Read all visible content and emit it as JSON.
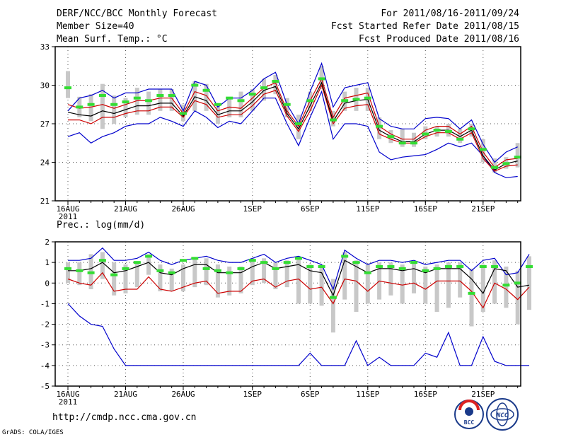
{
  "header": {
    "title": "DERF/NCC/BCC Monthly Forecast",
    "member_size": "Member Size=40",
    "variable": "Mean Surf. Temp.: °C",
    "forecast_period": "For 2011/08/16-2011/09/24",
    "started_refer": "Fcst Started Refer Date 2011/08/15",
    "produced": "Fcst Produced Date 2011/08/16"
  },
  "footer": {
    "url": "http://cmdp.ncc.cma.gov.cn",
    "credit": "GrADS: COLA/IGES",
    "logo_bcc_text": "BCC",
    "logo_ncc_text": "NCC"
  },
  "chart_data": [
    {
      "type": "line",
      "title": "Mean Surf. Temp.: °C",
      "x_tick_labels": [
        "16AUG",
        "21AUG",
        "26AUG",
        "1SEP",
        "6SEP",
        "11SEP",
        "16SEP",
        "21SEP"
      ],
      "x_tick_sublabel": "2011",
      "ylim": [
        21,
        33
      ],
      "y_ticks": [
        21,
        24,
        27,
        30,
        33
      ],
      "grid": true,
      "series": [
        {
          "name": "max",
          "color": "#0000cc",
          "values": [
            28.0,
            29.0,
            29.2,
            29.6,
            29.0,
            29.4,
            29.4,
            29.7,
            29.7,
            29.7,
            28.0,
            30.3,
            30.0,
            28.3,
            29.0,
            29.0,
            29.6,
            30.5,
            31.0,
            28.5,
            27.0,
            29.5,
            31.7,
            28.3,
            29.8,
            30.0,
            30.2,
            27.4,
            26.8,
            26.6,
            26.6,
            27.4,
            27.5,
            27.4,
            26.6,
            27.3,
            25.4,
            24.0,
            24.8,
            25.2
          ]
        },
        {
          "name": "min",
          "color": "#0000cc",
          "values": [
            26.0,
            26.3,
            25.5,
            26.0,
            26.3,
            26.8,
            27.0,
            27.0,
            27.5,
            27.2,
            26.8,
            28.0,
            27.5,
            26.7,
            27.2,
            27.0,
            28.0,
            29.0,
            29.0,
            27.0,
            25.3,
            27.5,
            29.5,
            25.8,
            27.0,
            27.0,
            26.8,
            24.8,
            24.2,
            24.4,
            24.5,
            24.6,
            25.0,
            25.5,
            25.2,
            25.5,
            24.5,
            23.2,
            22.8,
            22.9
          ]
        },
        {
          "name": "upper",
          "color": "#cc0000",
          "values": [
            28.5,
            28.2,
            28.3,
            28.5,
            28.2,
            28.5,
            28.8,
            28.8,
            29.0,
            29.0,
            27.8,
            29.5,
            29.2,
            28.0,
            28.3,
            28.2,
            29.0,
            29.8,
            30.2,
            28.0,
            26.8,
            28.8,
            30.5,
            27.5,
            29.0,
            29.2,
            29.4,
            26.8,
            26.2,
            25.8,
            25.8,
            26.5,
            26.8,
            26.8,
            26.2,
            26.8,
            24.8,
            23.6,
            24.2,
            24.3
          ]
        },
        {
          "name": "lower",
          "color": "#cc0000",
          "values": [
            27.3,
            27.3,
            27.0,
            27.5,
            27.5,
            27.8,
            28.0,
            28.0,
            28.3,
            28.3,
            27.5,
            28.8,
            28.5,
            27.5,
            27.7,
            27.7,
            28.4,
            29.3,
            29.6,
            27.6,
            26.4,
            28.0,
            30.0,
            27.0,
            28.2,
            28.4,
            28.5,
            26.2,
            25.8,
            25.5,
            25.5,
            26.0,
            26.3,
            26.3,
            25.8,
            26.3,
            24.3,
            23.3,
            23.7,
            23.8
          ]
        },
        {
          "name": "mean",
          "color": "#000000",
          "values": [
            27.9,
            27.7,
            27.6,
            28.0,
            27.8,
            28.1,
            28.4,
            28.4,
            28.6,
            28.6,
            27.6,
            29.1,
            28.8,
            27.7,
            28.0,
            28.0,
            28.7,
            29.6,
            29.9,
            27.8,
            26.6,
            28.4,
            30.2,
            27.2,
            28.6,
            28.8,
            28.9,
            26.5,
            26.0,
            25.6,
            25.6,
            26.2,
            26.5,
            26.5,
            26.0,
            26.5,
            24.5,
            23.4,
            23.9,
            24.1
          ]
        },
        {
          "name": "observation",
          "color": "#33dd33",
          "values": [
            29.8,
            28.3,
            28.5,
            29.2,
            28.5,
            28.7,
            29.0,
            28.8,
            29.2,
            29.2,
            27.8,
            30.0,
            29.6,
            28.5,
            29.0,
            28.8,
            29.3,
            29.8,
            30.3,
            28.5,
            27.0,
            28.8,
            30.5,
            27.3,
            28.8,
            28.9,
            29.0,
            26.8,
            26.0,
            25.5,
            25.5,
            26.2,
            26.5,
            26.4,
            25.8,
            26.6,
            25.0,
            23.6,
            23.9,
            24.4
          ]
        }
      ],
      "box_range": {
        "name": "ensemble spread",
        "color": "#c8c8c8",
        "low": [
          29.0,
          27.5,
          27.2,
          26.6,
          27.0,
          27.5,
          27.7,
          27.7,
          28.0,
          28.0,
          27.2,
          28.0,
          28.0,
          27.0,
          27.5,
          27.5,
          28.0,
          28.8,
          29.3,
          27.5,
          25.8,
          28.0,
          29.7,
          26.8,
          28.0,
          28.0,
          28.0,
          25.8,
          25.5,
          25.2,
          25.2,
          25.8,
          26.0,
          26.0,
          25.5,
          26.0,
          24.0,
          23.2,
          23.5,
          23.6
        ],
        "high": [
          31.1,
          29.1,
          29.3,
          30.1,
          29.2,
          29.0,
          29.8,
          29.5,
          29.7,
          29.7,
          28.5,
          30.3,
          30.1,
          28.6,
          29.0,
          29.5,
          29.7,
          30.5,
          30.8,
          29.0,
          27.7,
          29.5,
          31.5,
          28.0,
          29.5,
          29.8,
          29.8,
          27.5,
          26.5,
          26.6,
          26.3,
          26.8,
          26.8,
          27.0,
          26.6,
          27.0,
          25.8,
          24.3,
          24.4,
          25.5
        ]
      }
    },
    {
      "type": "line",
      "title": "Prec.: log(mm/d)",
      "x_tick_labels": [
        "16AUG",
        "21AUG",
        "26AUG",
        "1SEP",
        "6SEP",
        "11SEP",
        "16SEP",
        "21SEP"
      ],
      "x_tick_sublabel": "2011",
      "ylim": [
        -5,
        2
      ],
      "y_ticks": [
        -5,
        -4,
        -3,
        -2,
        -1,
        0,
        1,
        2
      ],
      "grid": true,
      "series": [
        {
          "name": "max",
          "color": "#0000cc",
          "values": [
            1.1,
            1.1,
            1.2,
            1.7,
            1.1,
            1.1,
            1.2,
            1.5,
            1.1,
            0.9,
            1.1,
            1.2,
            1.3,
            1.1,
            1.0,
            1.0,
            1.2,
            1.4,
            1.0,
            1.2,
            1.3,
            1.1,
            0.9,
            -0.3,
            1.6,
            1.2,
            0.9,
            1.1,
            1.1,
            1.0,
            1.1,
            0.9,
            1.0,
            1.1,
            1.1,
            0.6,
            1.1,
            1.2,
            0.4,
            0.5,
            1.4
          ]
        },
        {
          "name": "min",
          "color": "#0000cc",
          "values": [
            -1.0,
            -1.6,
            -2.0,
            -2.1,
            -3.2,
            -4.0,
            -4.0,
            -4.0,
            -4.0,
            -4.0,
            -4.0,
            -4.0,
            -4.0,
            -4.0,
            -4.0,
            -4.0,
            -4.0,
            -4.0,
            -4.0,
            -4.0,
            -4.0,
            -3.4,
            -4.0,
            -4.0,
            -4.0,
            -2.8,
            -4.0,
            -3.6,
            -4.0,
            -4.0,
            -4.0,
            -3.4,
            -3.6,
            -2.4,
            -4.0,
            -4.0,
            -2.6,
            -3.8,
            -4.0,
            -4.0,
            -4.0
          ]
        },
        {
          "name": "lower",
          "color": "#cc0000",
          "values": [
            0.2,
            0.0,
            -0.1,
            0.5,
            -0.4,
            -0.3,
            -0.3,
            0.3,
            -0.3,
            -0.4,
            -0.2,
            0.0,
            0.1,
            -0.5,
            -0.4,
            -0.4,
            0.1,
            0.2,
            -0.2,
            0.1,
            0.2,
            -0.3,
            -0.2,
            -1.0,
            0.2,
            0.1,
            -0.4,
            0.1,
            0.0,
            -0.1,
            0.0,
            -0.3,
            0.1,
            0.1,
            0.1,
            -0.4,
            -1.2,
            0.0,
            -0.3,
            -0.8,
            -0.2
          ]
        },
        {
          "name": "mean",
          "color": "#000000",
          "values": [
            0.6,
            0.6,
            0.7,
            1.0,
            0.5,
            0.6,
            0.8,
            1.0,
            0.5,
            0.4,
            0.7,
            0.9,
            0.9,
            0.5,
            0.5,
            0.5,
            0.8,
            1.0,
            0.7,
            0.8,
            0.9,
            0.6,
            0.5,
            -0.6,
            1.1,
            0.8,
            0.5,
            0.7,
            0.7,
            0.6,
            0.7,
            0.5,
            0.7,
            0.7,
            0.7,
            0.2,
            -0.5,
            0.7,
            0.6,
            -0.2,
            -0.1
          ]
        },
        {
          "name": "observation",
          "color": "#33dd33",
          "values": [
            0.7,
            0.6,
            0.5,
            1.1,
            0.4,
            0.7,
            1.0,
            1.3,
            0.6,
            0.5,
            1.1,
            1.2,
            0.7,
            0.6,
            0.5,
            0.7,
            1.1,
            1.0,
            0.7,
            1.0,
            1.2,
            0.8,
            0.8,
            -0.7,
            1.3,
            1.0,
            0.5,
            0.8,
            0.8,
            0.7,
            1.0,
            0.6,
            0.7,
            0.8,
            0.8,
            -0.5,
            0.8,
            0.8,
            -0.1,
            0.0,
            0.8
          ]
        }
      ],
      "box_range": {
        "name": "ensemble spread",
        "color": "#c8c8c8",
        "low": [
          0.0,
          -0.1,
          -0.3,
          0.2,
          -0.6,
          -0.5,
          -0.2,
          0.4,
          -0.4,
          -0.4,
          -0.4,
          -0.2,
          -0.1,
          -0.7,
          -0.6,
          -0.5,
          -0.1,
          0.0,
          -0.3,
          -0.2,
          -1.0,
          -1.0,
          -1.1,
          -2.4,
          -0.8,
          -1.4,
          -1.0,
          -0.8,
          -0.6,
          -1.0,
          -0.5,
          -1.0,
          -1.4,
          -1.2,
          -0.7,
          -2.1,
          -1.4,
          -1.0,
          -1.2,
          -2.0,
          -1.3
        ],
        "high": [
          1.0,
          1.0,
          1.4,
          1.5,
          1.0,
          0.9,
          1.0,
          1.4,
          0.9,
          0.7,
          0.9,
          1.2,
          1.2,
          0.9,
          0.8,
          0.8,
          1.2,
          1.2,
          1.0,
          1.1,
          1.2,
          0.9,
          0.9,
          0.2,
          1.5,
          1.1,
          0.9,
          1.0,
          1.0,
          0.9,
          1.0,
          0.8,
          0.9,
          1.0,
          1.0,
          0.7,
          0.9,
          1.1,
          0.8,
          0.6,
          1.3
        ]
      }
    }
  ]
}
